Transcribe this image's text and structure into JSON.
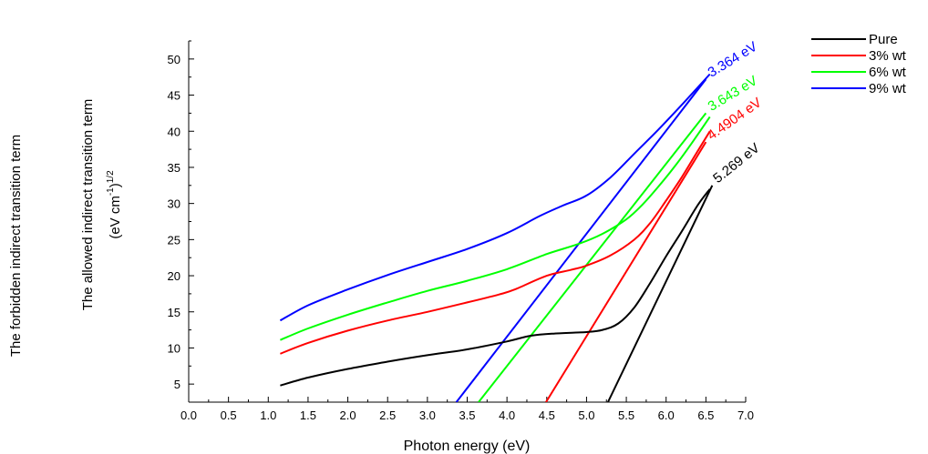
{
  "chart_data": {
    "type": "line",
    "title": "",
    "xlabel": "Photon energy (eV)",
    "ylabel_outer": "The forbidden indirect transition term",
    "ylabel_line1": "The allowed indirect transition term",
    "ylabel_line2": "(eV cm",
    "ylabel_sup1": "-1",
    "ylabel_close": ")",
    "ylabel_sup2": "1/2",
    "xlim": [
      0.0,
      7.0
    ],
    "ylim": [
      2.5,
      52.5
    ],
    "x_ticks": [
      0.0,
      0.5,
      1.0,
      1.5,
      2.0,
      2.5,
      3.0,
      3.5,
      4.0,
      4.5,
      5.0,
      5.5,
      6.0,
      6.5,
      7.0
    ],
    "x_tick_labels": [
      "0.0",
      "0.5",
      "1.0",
      "1.5",
      "2.0",
      "2.5",
      "3.0",
      "3.5",
      "4.0",
      "4.5",
      "5.0",
      "5.5",
      "6.0",
      "6.5",
      "7.0"
    ],
    "y_ticks": [
      5,
      10,
      15,
      20,
      25,
      30,
      35,
      40,
      45,
      50
    ],
    "y_tick_labels": [
      "5",
      "10",
      "15",
      "20",
      "25",
      "30",
      "35",
      "40",
      "45",
      "50"
    ],
    "legend_position": "top-right",
    "series": [
      {
        "name": "Pure",
        "color": "#000000",
        "x": [
          1.15,
          1.5,
          2.0,
          2.5,
          3.0,
          3.5,
          4.0,
          4.3,
          4.6,
          5.0,
          5.2,
          5.4,
          5.6,
          5.8,
          6.0,
          6.2,
          6.4,
          6.55
        ],
        "y": [
          4.8,
          5.9,
          7.1,
          8.1,
          9.0,
          9.8,
          10.9,
          11.7,
          12.0,
          12.2,
          12.5,
          13.4,
          15.6,
          19.0,
          22.7,
          26.2,
          29.8,
          32.0
        ]
      },
      {
        "name": "3% wt",
        "color": "#ff0000",
        "x": [
          1.15,
          1.5,
          2.0,
          2.5,
          3.0,
          3.5,
          3.9,
          4.1,
          4.5,
          4.8,
          5.0,
          5.3,
          5.6,
          5.8,
          6.0,
          6.2,
          6.4,
          6.55
        ],
        "y": [
          9.2,
          10.7,
          12.4,
          13.8,
          15.0,
          16.3,
          17.4,
          18.1,
          20.0,
          20.8,
          21.4,
          22.8,
          25.0,
          27.3,
          30.4,
          33.7,
          37.3,
          40.0
        ]
      },
      {
        "name": "6% wt",
        "color": "#00ff00",
        "x": [
          1.15,
          1.5,
          2.0,
          2.5,
          3.0,
          3.5,
          4.0,
          4.5,
          4.9,
          5.2,
          5.5,
          5.7,
          5.9,
          6.1,
          6.3,
          6.55
        ],
        "y": [
          11.1,
          12.7,
          14.6,
          16.3,
          17.9,
          19.3,
          20.9,
          23.0,
          24.4,
          25.8,
          27.8,
          29.8,
          32.3,
          35.0,
          38.0,
          42.0
        ]
      },
      {
        "name": "9% wt",
        "color": "#0000ff",
        "x": [
          1.15,
          1.5,
          2.0,
          2.5,
          3.0,
          3.5,
          4.0,
          4.4,
          4.7,
          5.0,
          5.3,
          5.6,
          5.9,
          6.2,
          6.55
        ],
        "y": [
          13.8,
          15.9,
          18.1,
          20.1,
          21.9,
          23.7,
          25.9,
          28.2,
          29.7,
          31.1,
          33.6,
          36.9,
          40.2,
          43.7,
          47.9
        ]
      }
    ],
    "fit_lines": [
      {
        "series": "Pure",
        "color": "#000000",
        "x": [
          5.269,
          6.58
        ],
        "y": [
          2.5,
          32.5
        ],
        "label": "5.269 eV"
      },
      {
        "series": "3% wt",
        "color": "#ff0000",
        "x": [
          4.4904,
          6.5
        ],
        "y": [
          2.5,
          38.5
        ],
        "label": "4.4904 eV"
      },
      {
        "series": "6% wt",
        "color": "#00ff00",
        "x": [
          3.643,
          6.5
        ],
        "y": [
          2.5,
          42.5
        ],
        "label": "3.643 eV"
      },
      {
        "series": "9% wt",
        "color": "#0000ff",
        "x": [
          3.364,
          6.5
        ],
        "y": [
          2.5,
          47.2
        ],
        "label": "3.364 eV"
      }
    ]
  }
}
